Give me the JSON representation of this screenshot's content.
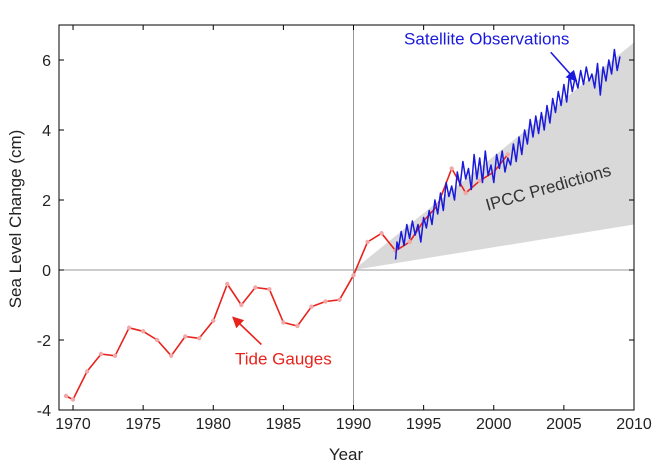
{
  "chart_data": {
    "type": "line",
    "xlabel": "Year",
    "ylabel": "Sea Level Change (cm)",
    "xlim": [
      1969,
      2010
    ],
    "ylim": [
      -4,
      7
    ],
    "x_ticks": [
      1970,
      1975,
      1980,
      1985,
      1990,
      1995,
      2000,
      2005,
      2010
    ],
    "y_ticks": [
      -4,
      -2,
      0,
      2,
      4,
      6
    ],
    "reference_lines": {
      "x": 1990,
      "y": 0
    },
    "series": [
      {
        "name": "Tide Gauges",
        "color": "#e8231c",
        "marker_color": "#f0a8a8",
        "x": [
          1969.5,
          1970,
          1971,
          1972,
          1973,
          1974,
          1975,
          1976,
          1977,
          1978,
          1979,
          1980,
          1981,
          1982,
          1983,
          1984,
          1985,
          1986,
          1987,
          1988,
          1989,
          1990,
          1991,
          1992,
          1993,
          1994,
          1995,
          1996,
          1997,
          1998,
          1999,
          2000,
          2001
        ],
        "values": [
          -3.6,
          -3.7,
          -2.9,
          -2.4,
          -2.45,
          -1.65,
          -1.75,
          -2.0,
          -2.45,
          -1.9,
          -1.95,
          -1.45,
          -0.4,
          -1.0,
          -0.5,
          -0.55,
          -1.5,
          -1.6,
          -1.05,
          -0.9,
          -0.85,
          -0.15,
          0.8,
          1.05,
          0.55,
          0.8,
          1.4,
          1.85,
          2.9,
          2.2,
          2.55,
          2.8,
          3.3
        ]
      },
      {
        "name": "Satellite Observations",
        "color": "#1a1adc",
        "x": [
          1993.0,
          1993.1,
          1993.2,
          1993.4,
          1993.6,
          1993.8,
          1994.0,
          1994.2,
          1994.4,
          1994.6,
          1994.8,
          1995.0,
          1995.2,
          1995.4,
          1995.6,
          1995.8,
          1996.0,
          1996.2,
          1996.4,
          1996.6,
          1996.8,
          1997.0,
          1997.2,
          1997.4,
          1997.6,
          1997.8,
          1998.0,
          1998.2,
          1998.4,
          1998.6,
          1998.8,
          1999.0,
          1999.2,
          1999.4,
          1999.6,
          1999.8,
          2000.0,
          2000.2,
          2000.4,
          2000.6,
          2000.8,
          2001.0,
          2001.2,
          2001.4,
          2001.6,
          2001.8,
          2002.0,
          2002.2,
          2002.4,
          2002.6,
          2002.8,
          2003.0,
          2003.2,
          2003.4,
          2003.6,
          2003.8,
          2004.0,
          2004.2,
          2004.4,
          2004.6,
          2004.8,
          2005.0,
          2005.2,
          2005.4,
          2005.6,
          2005.8,
          2006.0,
          2006.2,
          2006.4,
          2006.6,
          2006.8,
          2007.0,
          2007.2,
          2007.4,
          2007.6,
          2007.8,
          2008.0,
          2008.2,
          2008.4,
          2008.6,
          2008.8,
          2009.0
        ],
        "values": [
          0.3,
          0.8,
          0.6,
          1.1,
          0.7,
          1.3,
          0.9,
          1.4,
          1.0,
          1.3,
          0.8,
          1.5,
          1.2,
          1.7,
          1.3,
          2.0,
          1.6,
          2.2,
          1.7,
          2.5,
          2.1,
          2.4,
          2.0,
          2.8,
          2.4,
          3.1,
          2.6,
          2.9,
          2.3,
          3.3,
          2.6,
          3.2,
          2.5,
          3.4,
          2.7,
          3.0,
          2.5,
          3.3,
          2.9,
          3.4,
          2.8,
          3.2,
          3.0,
          3.6,
          3.1,
          3.8,
          3.3,
          4.0,
          3.6,
          4.3,
          3.8,
          4.4,
          3.9,
          4.5,
          4.0,
          4.7,
          4.2,
          4.9,
          4.5,
          5.1,
          4.7,
          5.3,
          4.8,
          5.6,
          5.1,
          5.5,
          5.2,
          5.7,
          5.3,
          5.8,
          5.4,
          5.6,
          5.2,
          5.9,
          5.0,
          5.8,
          5.4,
          6.0,
          5.6,
          6.3,
          5.7,
          6.1
        ]
      }
    ],
    "band": {
      "name": "IPCC Predictions",
      "color": "#d9d9d9",
      "x": [
        1990,
        2010
      ],
      "lower": [
        0.0,
        1.3
      ],
      "upper": [
        0.0,
        6.5
      ]
    },
    "annotations": [
      {
        "text": "Satellite Observations",
        "color": "#1a1adc",
        "x": 1999.5,
        "y": 6.45,
        "arrow_to": [
          2005.9,
          5.4
        ]
      },
      {
        "text": "IPCC Predictions",
        "color": "#333333",
        "x": 2004,
        "y": 2.2,
        "rotate": -16
      },
      {
        "text": "Tide Gauges",
        "color": "#e8231c",
        "x": 1985,
        "y": -2.7,
        "arrow_to": [
          1981.4,
          -1.35
        ]
      }
    ]
  }
}
